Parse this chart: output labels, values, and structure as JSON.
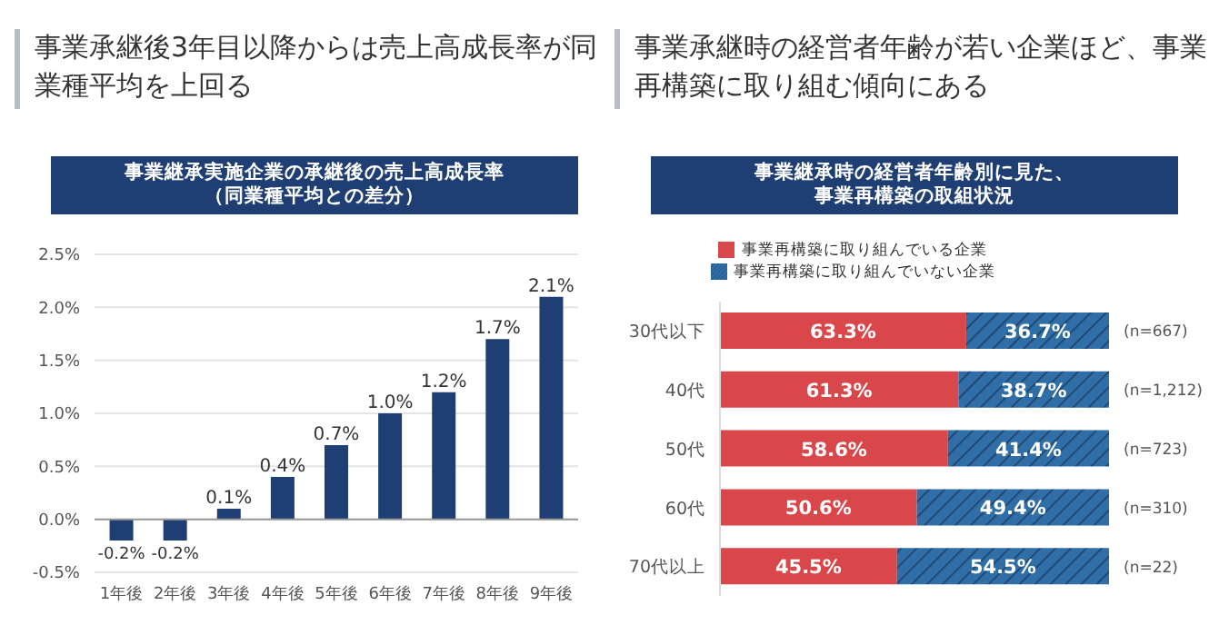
{
  "chart_data": [
    {
      "type": "bar",
      "title": "事業承継後3年目以降からは売上高成長率が同業種平均を上回る",
      "subtitle": "事業継承実施企業の承継後の売上高成長率（同業種平均との差分）",
      "categories": [
        "1年後",
        "2年後",
        "3年後",
        "4年後",
        "5年後",
        "6年後",
        "7年後",
        "8年後",
        "9年後"
      ],
      "values": [
        -0.2,
        -0.2,
        0.1,
        0.4,
        0.7,
        1.0,
        1.2,
        1.7,
        2.1
      ],
      "color": "#1f3f74",
      "value_labels": [
        "-0.2%",
        "-0.2%",
        "0.1%",
        "0.4%",
        "0.7%",
        "1.0%",
        "1.2%",
        "1.7%",
        "2.1%"
      ],
      "ylim": [
        -0.5,
        2.5
      ],
      "yticks": [
        {
          "value": -0.5,
          "label": "-0.5%"
        },
        {
          "value": 0,
          "label": "0.0%"
        },
        {
          "value": 0.5,
          "label": "0.5%"
        },
        {
          "value": 1.0,
          "label": "1.0%"
        },
        {
          "value": 1.5,
          "label": "1.5%"
        },
        {
          "value": 2.0,
          "label": "2.0%"
        },
        {
          "value": 2.5,
          "label": "2.5%"
        }
      ],
      "grid": "y",
      "legend": false
    },
    {
      "type": "bar",
      "orientation": "horizontal",
      "stacked": true,
      "title": "事業承継時の経営者年齢が若い企業ほど、事業再構築に取り組む傾向にある",
      "subtitle": "事業継承時の経営者年齢別に見た、事業再構築の取組状況",
      "categories": [
        "30代以下",
        "40代",
        "50代",
        "60代",
        "70代以上"
      ],
      "series": [
        {
          "name": "事業再構築に取り組んでいる企業",
          "color": "#d9474b",
          "values": [
            63.3,
            61.3,
            58.6,
            50.6,
            45.5
          ],
          "value_labels": [
            "63.3%",
            "61.3%",
            "58.6%",
            "50.6%",
            "45.5%"
          ]
        },
        {
          "name": "事業再構築に取り組んでいない企業",
          "color": "#2f6ea6",
          "values": [
            36.7,
            38.7,
            41.4,
            49.4,
            54.5
          ],
          "value_labels": [
            "36.7%",
            "38.7%",
            "41.4%",
            "49.4%",
            "54.5%"
          ]
        }
      ],
      "legend": "top",
      "tick_labels": "y",
      "annotations": [
        "(n=667)",
        "(n=1,212)",
        "(n=723)",
        "(n=310)",
        "(n=22)"
      ]
    }
  ]
}
